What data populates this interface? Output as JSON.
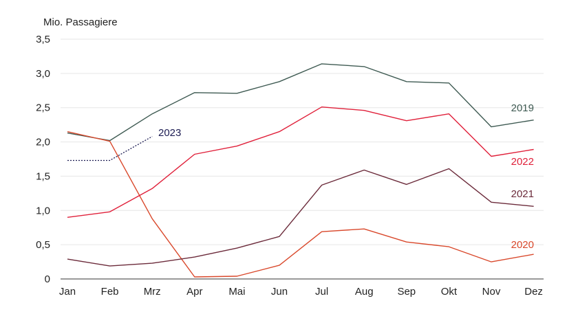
{
  "chart_data": {
    "type": "line",
    "ylabel": "Mio. Passagiere",
    "ylim": [
      0,
      3.5
    ],
    "yticks": [
      {
        "value": 0,
        "label": "0"
      },
      {
        "value": 0.5,
        "label": "0,5"
      },
      {
        "value": 1.0,
        "label": "1,0"
      },
      {
        "value": 1.5,
        "label": "1,5"
      },
      {
        "value": 2.0,
        "label": "2,0"
      },
      {
        "value": 2.5,
        "label": "2,5"
      },
      {
        "value": 3.0,
        "label": "3,0"
      },
      {
        "value": 3.5,
        "label": "3,5"
      }
    ],
    "categories": [
      "Jan",
      "Feb",
      "Mrz",
      "Apr",
      "Mai",
      "Jun",
      "Jul",
      "Aug",
      "Sep",
      "Okt",
      "Nov",
      "Dez"
    ],
    "grid": true,
    "series": [
      {
        "name": "2019",
        "color": "#3e5a52",
        "dashed": false,
        "values": [
          2.13,
          2.02,
          2.41,
          2.72,
          2.71,
          2.88,
          3.14,
          3.1,
          2.88,
          2.86,
          2.22,
          2.32
        ]
      },
      {
        "name": "2020",
        "color": "#d9482b",
        "dashed": false,
        "values": [
          2.15,
          2.01,
          0.88,
          0.03,
          0.04,
          0.2,
          0.69,
          0.73,
          0.54,
          0.47,
          0.25,
          0.36
        ]
      },
      {
        "name": "2021",
        "color": "#6b2a3a",
        "dashed": false,
        "values": [
          0.29,
          0.19,
          0.23,
          0.32,
          0.45,
          0.62,
          1.37,
          1.59,
          1.38,
          1.61,
          1.12,
          1.06
        ]
      },
      {
        "name": "2022",
        "color": "#e0203a",
        "dashed": false,
        "values": [
          0.9,
          0.98,
          1.32,
          1.82,
          1.94,
          2.15,
          2.51,
          2.46,
          2.31,
          2.41,
          1.79,
          1.89
        ]
      },
      {
        "name": "2023",
        "color": "#1b1b52",
        "dashed": true,
        "values": [
          1.73,
          1.73,
          2.08,
          null,
          null,
          null,
          null,
          null,
          null,
          null,
          null,
          null
        ]
      }
    ]
  }
}
